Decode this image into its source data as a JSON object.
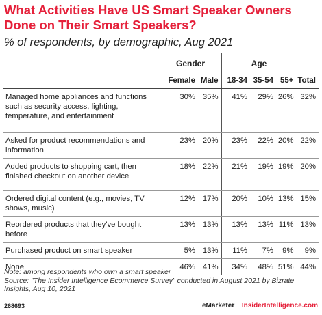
{
  "title": "What Activities Have US Smart Speaker Owners Done on Their Smart Speakers?",
  "subtitle": "% of respondents, by demographic, Aug 2021",
  "chart_data": {
    "type": "table",
    "groups": [
      {
        "label": "Gender",
        "columns": [
          "Female",
          "Male"
        ]
      },
      {
        "label": "Age",
        "columns": [
          "18-34",
          "35-54",
          "55+"
        ]
      },
      {
        "label": "",
        "columns": [
          "Total"
        ]
      }
    ],
    "columns": [
      "Female",
      "Male",
      "18-34",
      "35-54",
      "55+",
      "Total"
    ],
    "rows": [
      {
        "label": "Managed home appliances and functions such as security access, lighting, temperature, and entertainment",
        "values": [
          "30%",
          "35%",
          "41%",
          "29%",
          "26%",
          "32%"
        ]
      },
      {
        "label": "Asked for product recommendations and information",
        "values": [
          "23%",
          "20%",
          "23%",
          "22%",
          "20%",
          "22%"
        ]
      },
      {
        "label": "Added products to shopping cart, then finished checkout on another device",
        "values": [
          "18%",
          "22%",
          "21%",
          "19%",
          "19%",
          "20%"
        ]
      },
      {
        "label": "Ordered digital content (e.g., movies, TV shows, music)",
        "values": [
          "12%",
          "17%",
          "20%",
          "10%",
          "13%",
          "15%"
        ]
      },
      {
        "label": "Reordered products that they've bought before",
        "values": [
          "13%",
          "13%",
          "13%",
          "13%",
          "11%",
          "13%"
        ]
      },
      {
        "label": "Purchased product on smart speaker",
        "values": [
          "5%",
          "13%",
          "11%",
          "7%",
          "9%",
          "9%"
        ]
      },
      {
        "label": "None",
        "values": [
          "46%",
          "41%",
          "34%",
          "48%",
          "51%",
          "44%"
        ]
      }
    ]
  },
  "note": "Note: among respondents who own a smart speaker",
  "source": "Source: \"The Insider Intelligence Ecommerce Survey\" conducted in August 2021 by Bizrate Insights, Aug 10, 2021",
  "footer": {
    "id": "268693",
    "brand1": "eMarketer",
    "separator": "|",
    "brand2": "InsiderIntelligence.com"
  }
}
